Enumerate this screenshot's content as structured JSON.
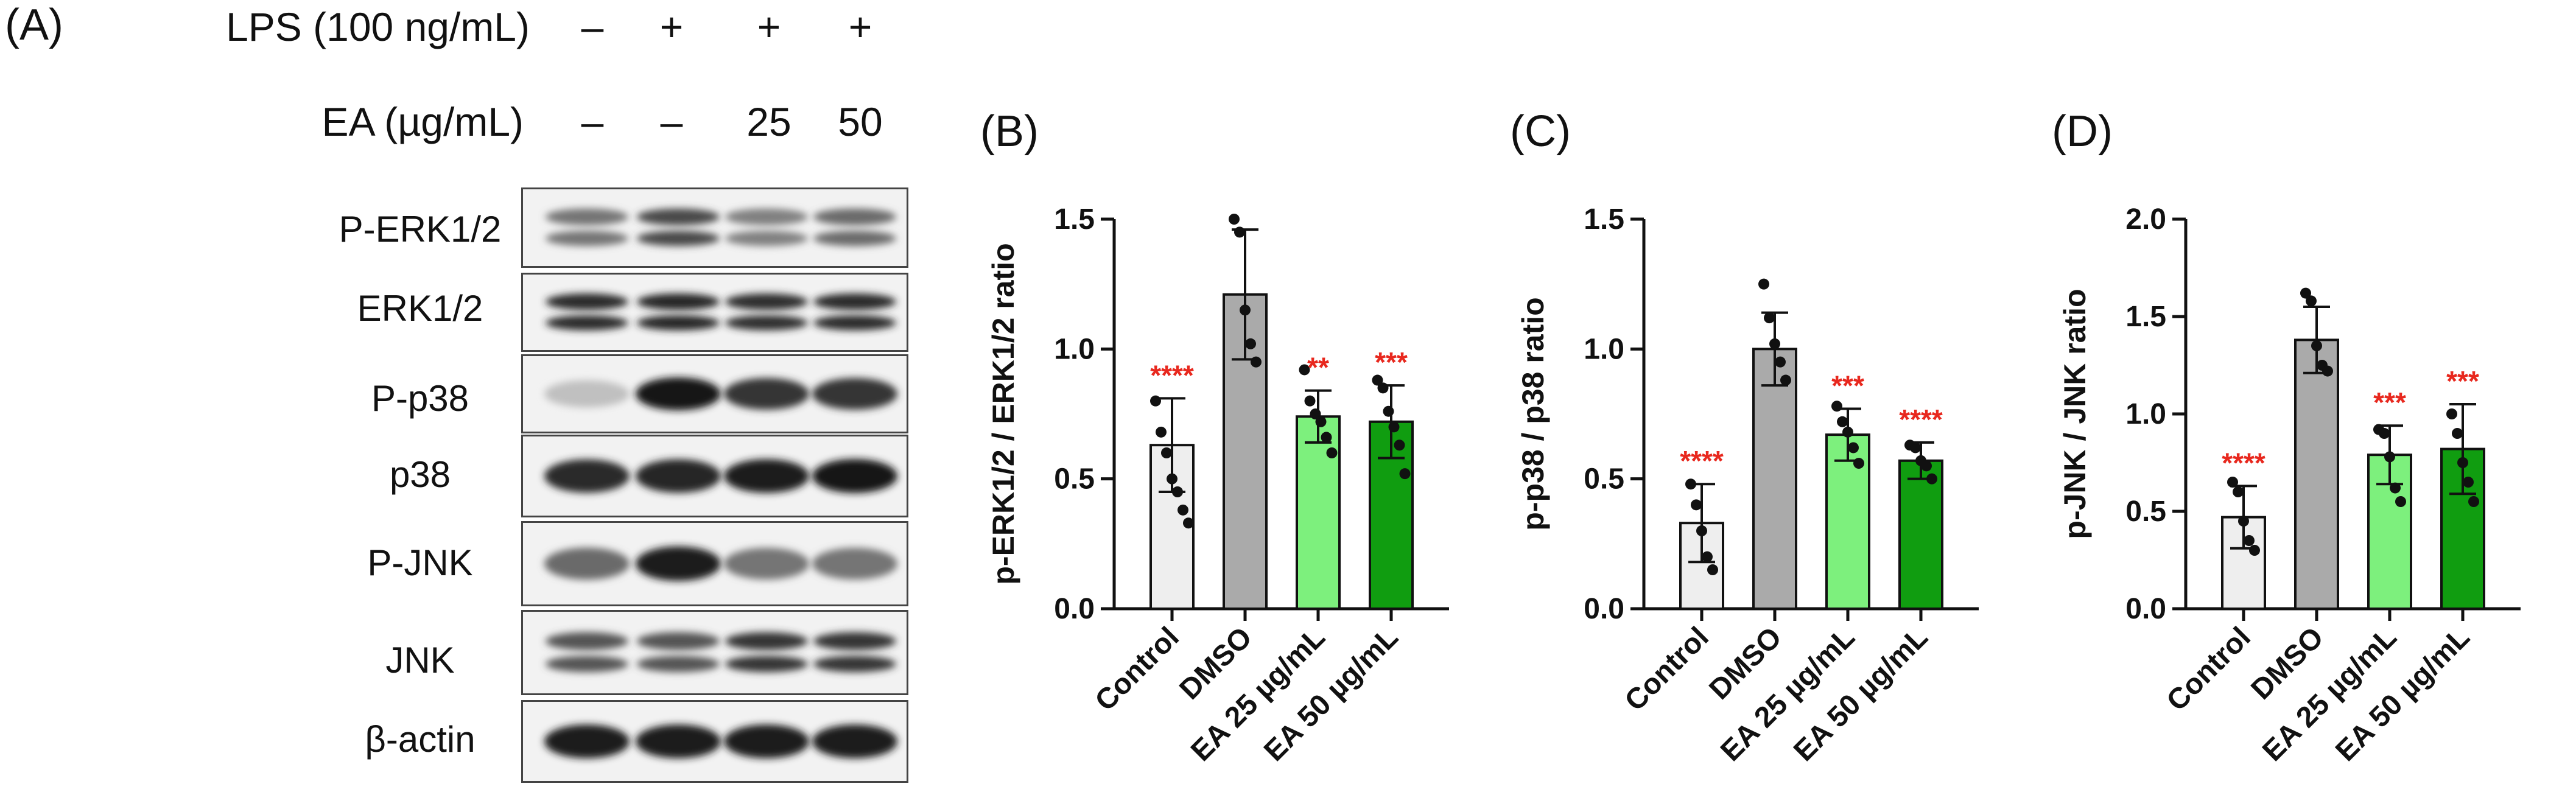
{
  "panelA": {
    "label": "(A)",
    "treatments": [
      {
        "label": "LPS (100 ng/mL)",
        "values": [
          "–",
          "+",
          "+",
          "+"
        ]
      },
      {
        "label": "EA (µg/mL)",
        "values": [
          "–",
          "–",
          "25",
          "50"
        ]
      }
    ],
    "blots": [
      {
        "label": "P-ERK1/2",
        "intensity": [
          0.55,
          0.75,
          0.5,
          0.6
        ],
        "double": true
      },
      {
        "label": "ERK1/2",
        "intensity": [
          0.9,
          0.92,
          0.88,
          0.9
        ],
        "double": true
      },
      {
        "label": "P-p38",
        "intensity": [
          0.2,
          1.0,
          0.85,
          0.85
        ],
        "double": false
      },
      {
        "label": "p38",
        "intensity": [
          0.9,
          0.92,
          0.95,
          0.98
        ],
        "double": false
      },
      {
        "label": "P-JNK",
        "intensity": [
          0.6,
          0.95,
          0.55,
          0.55
        ],
        "double": false
      },
      {
        "label": "JNK",
        "intensity": [
          0.7,
          0.7,
          0.85,
          0.85
        ],
        "double": true
      },
      {
        "label": "β-actin",
        "intensity": [
          0.95,
          0.95,
          0.95,
          0.95
        ],
        "double": false
      }
    ]
  },
  "chart_data": [
    {
      "panel_label": "(B)",
      "type": "bar",
      "ylabel": "p-ERK1/2 / ERK1/2 ratio",
      "ylim": [
        0,
        1.5
      ],
      "yticks": [
        "0.0",
        "0.5",
        "1.0",
        "1.5"
      ],
      "categories": [
        "Control",
        "DMSO",
        "EA 25 µg/mL",
        "EA 50 µg/mL"
      ],
      "values": [
        0.63,
        1.21,
        0.74,
        0.72
      ],
      "errors": [
        0.18,
        0.25,
        0.1,
        0.14
      ],
      "significance": [
        "****",
        "",
        "**",
        "***"
      ],
      "points": [
        [
          0.8,
          0.68,
          0.6,
          0.5,
          0.45,
          0.38,
          0.33
        ],
        [
          1.5,
          1.45,
          1.15,
          1.02,
          0.95
        ],
        [
          0.92,
          0.8,
          0.75,
          0.72,
          0.66,
          0.6
        ],
        [
          0.88,
          0.85,
          0.76,
          0.7,
          0.63,
          0.52
        ]
      ],
      "colors": [
        "#eeeeee",
        "#aaaaaa",
        "#7df07d",
        "#109d10"
      ]
    },
    {
      "panel_label": "(C)",
      "type": "bar",
      "ylabel": "p-p38 / p38 ratio",
      "ylim": [
        0,
        1.5
      ],
      "yticks": [
        "0.0",
        "0.5",
        "1.0",
        "1.5"
      ],
      "categories": [
        "Control",
        "DMSO",
        "EA 25 µg/mL",
        "EA 50 µg/mL"
      ],
      "values": [
        0.33,
        1.0,
        0.67,
        0.57
      ],
      "errors": [
        0.15,
        0.14,
        0.1,
        0.07
      ],
      "significance": [
        "****",
        "",
        "***",
        "****"
      ],
      "points": [
        [
          0.48,
          0.4,
          0.3,
          0.2,
          0.15
        ],
        [
          1.25,
          1.12,
          1.02,
          0.95,
          0.88
        ],
        [
          0.78,
          0.72,
          0.68,
          0.62,
          0.56
        ],
        [
          0.63,
          0.62,
          0.57,
          0.55,
          0.5
        ]
      ],
      "colors": [
        "#eeeeee",
        "#aaaaaa",
        "#7df07d",
        "#109d10"
      ]
    },
    {
      "panel_label": "(D)",
      "type": "bar",
      "ylabel": "p-JNK / JNK ratio",
      "ylim": [
        0,
        2.0
      ],
      "yticks": [
        "0.0",
        "0.5",
        "1.0",
        "1.5",
        "2.0"
      ],
      "categories": [
        "Control",
        "DMSO",
        "EA 25 µg/mL",
        "EA 50 µg/mL"
      ],
      "values": [
        0.47,
        1.38,
        0.79,
        0.82
      ],
      "errors": [
        0.16,
        0.17,
        0.15,
        0.23
      ],
      "significance": [
        "****",
        "",
        "***",
        "***"
      ],
      "points": [
        [
          0.65,
          0.6,
          0.45,
          0.35,
          0.3
        ],
        [
          1.62,
          1.58,
          1.35,
          1.25,
          1.22
        ],
        [
          0.92,
          0.9,
          0.78,
          0.62,
          0.55
        ],
        [
          1.0,
          0.9,
          0.75,
          0.65,
          0.55
        ]
      ],
      "colors": [
        "#eeeeee",
        "#aaaaaa",
        "#7df07d",
        "#109d10"
      ]
    }
  ]
}
